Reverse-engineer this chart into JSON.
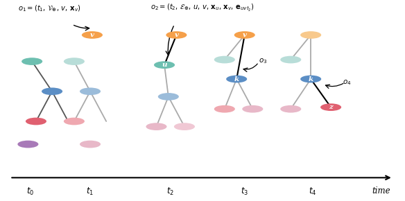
{
  "annotation1": "$o_1 = (t_1,\\, \\mathcal{V}_{\\oplus},\\, v,\\, \\mathbf{x}_v)$",
  "annotation2": "$o_2 = (t_2,\\, \\mathcal{E}_{\\oplus},\\, u,\\, v,\\, \\mathbf{x}_u,\\, \\mathbf{x}_v,\\, \\mathbf{e}_{uvt_2})$",
  "annotation3": "$o_3$",
  "annotation4": "$o_4$",
  "time_labels": [
    "$t_0$",
    "$t_1$",
    "$t_2$",
    "$t_3$",
    "$t_4$",
    "time"
  ],
  "colors": {
    "orange": "#F5A04A",
    "orange_light": "#F8C98C",
    "teal": "#6DBFB0",
    "teal_light": "#9DD4CB",
    "teal_pale": "#B8DDD8",
    "blue": "#5B8EC5",
    "blue_light": "#9BBCDA",
    "red": "#E06070",
    "red_light": "#EFA8B0",
    "purple": "#A87AB8",
    "pink_pale": "#E8B8C8",
    "pink_light": "#F0C8D4",
    "gray_edge": "#aaaaaa",
    "dark_edge": "#555555"
  }
}
